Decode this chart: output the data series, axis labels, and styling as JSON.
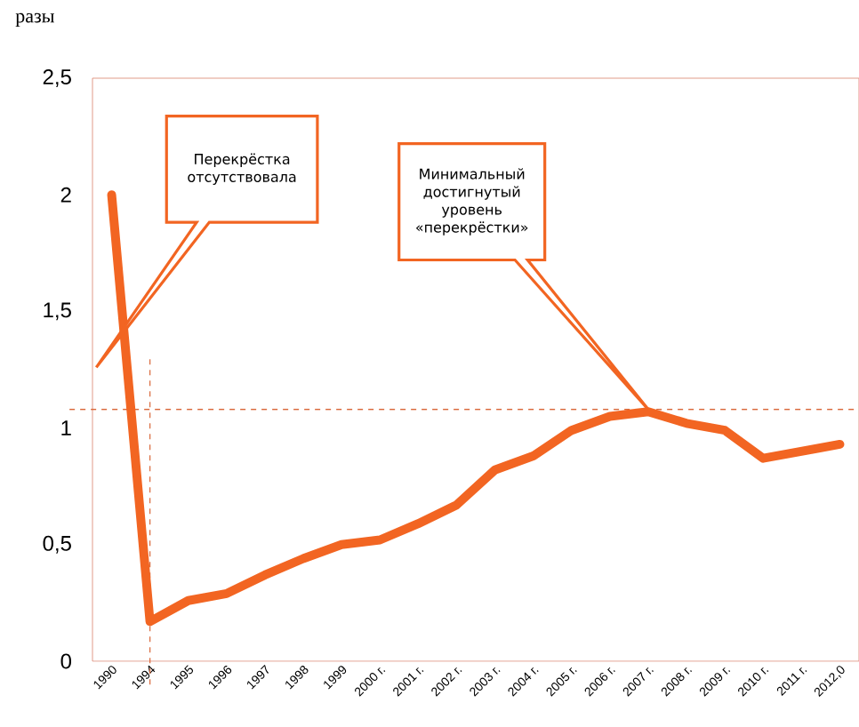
{
  "chart_data": {
    "type": "line",
    "ylabel": "разы",
    "categories": [
      "1990",
      "1994",
      "1995",
      "1996",
      "1997",
      "1998",
      "1999",
      "2000 г.",
      "2001 г.",
      "2002 г.",
      "2003 г.",
      "2004 г.",
      "2005 г.",
      "2006 г.",
      "2007 г.",
      "2008 г.",
      "2009 г.",
      "2010 г.",
      "2011 г.",
      "2012,0"
    ],
    "series": [
      {
        "color": "#f26522",
        "values": [
          2.0,
          0.17,
          0.26,
          0.29,
          0.37,
          0.44,
          0.5,
          0.52,
          0.59,
          0.67,
          0.82,
          0.88,
          0.99,
          1.05,
          1.07,
          1.02,
          0.99,
          0.87,
          0.9,
          0.93
        ]
      }
    ],
    "ylim": [
      0,
      2.5
    ],
    "yticks": [
      0,
      {
        "value": 0.5,
        "label": "0,5"
      },
      1,
      {
        "value": 1.5,
        "label": "1,5"
      },
      2,
      {
        "value": 2.5,
        "label": "2,5"
      }
    ],
    "ref_lines": [
      {
        "axis": "y",
        "value": 1.08,
        "color": "#d9683a",
        "line_style": "dashed"
      },
      {
        "axis": "x",
        "value": "1994",
        "color": "#d9683a",
        "line_style": "dashed"
      }
    ],
    "annotations": [
      "Перекрёстка отсутствовала",
      "Минимальный достигнутый уровень «перекрёстки»"
    ],
    "grid": false,
    "marker": "none",
    "line_style": "solid"
  }
}
